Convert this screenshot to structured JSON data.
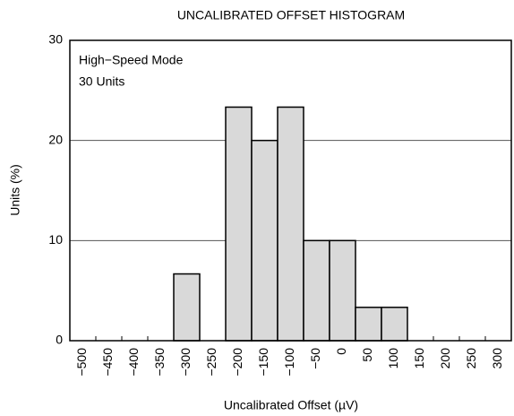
{
  "chart_data": {
    "type": "histogram",
    "title": "UNCALIBRATED OFFSET HISTOGRAM",
    "x_label": "Uncalibrated Offset (µV)",
    "y_label": "Units (%)",
    "annotations": [
      "High−Speed Mode",
      "30 Units"
    ],
    "bins": [
      -525,
      -475,
      -425,
      -375,
      -325,
      -275,
      -225,
      -175,
      -125,
      -75,
      -25,
      25,
      75,
      125,
      175,
      225,
      275,
      325
    ],
    "values": [
      0,
      0,
      0,
      0,
      6.67,
      0,
      23.33,
      20,
      23.33,
      10,
      10,
      3.33,
      3.33,
      0,
      0,
      0,
      0
    ],
    "color": "#d9d9d9",
    "xlim": [
      -525,
      325
    ],
    "xticks": [
      {
        "value": -500,
        "label": "−500"
      },
      {
        "value": -450,
        "label": "−450"
      },
      {
        "value": -400,
        "label": "−400"
      },
      {
        "value": -350,
        "label": "−350"
      },
      {
        "value": -300,
        "label": "−300"
      },
      {
        "value": -250,
        "label": "−250"
      },
      {
        "value": -200,
        "label": "−200"
      },
      {
        "value": -150,
        "label": "−150"
      },
      {
        "value": -100,
        "label": "−100"
      },
      {
        "value": -50,
        "label": "−50"
      },
      0,
      50,
      100,
      150,
      200,
      250,
      300
    ],
    "ylim": [
      0,
      30
    ],
    "yticks": [
      0,
      10,
      20,
      30
    ],
    "grid": true
  }
}
